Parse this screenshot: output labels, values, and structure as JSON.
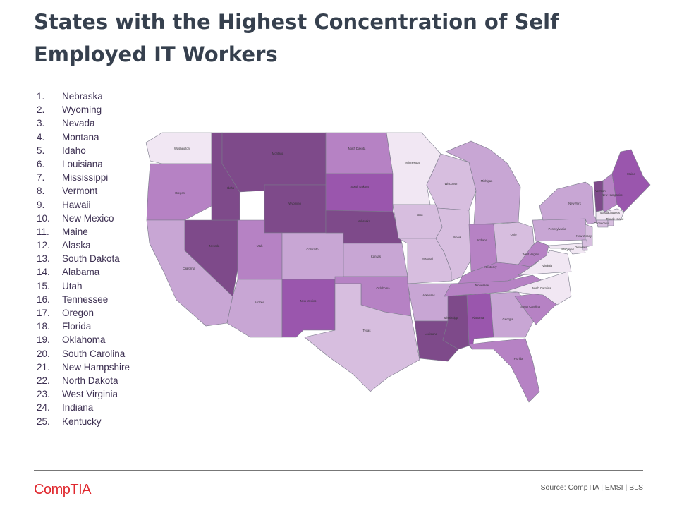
{
  "title": "States with the Highest Concentration of Self Employed IT Workers",
  "ranking": [
    {
      "rank": "1.",
      "state": "Nebraska"
    },
    {
      "rank": "2.",
      "state": "Wyoming"
    },
    {
      "rank": "3.",
      "state": "Nevada"
    },
    {
      "rank": "4.",
      "state": "Montana"
    },
    {
      "rank": "5.",
      "state": "Idaho"
    },
    {
      "rank": "6.",
      "state": "Louisiana"
    },
    {
      "rank": "7.",
      "state": "Mississippi"
    },
    {
      "rank": "8.",
      "state": "Vermont"
    },
    {
      "rank": "9.",
      "state": "Hawaii"
    },
    {
      "rank": "10.",
      "state": "New Mexico"
    },
    {
      "rank": "11.",
      "state": "Maine"
    },
    {
      "rank": "12.",
      "state": "Alaska"
    },
    {
      "rank": "13.",
      "state": "South Dakota"
    },
    {
      "rank": "14.",
      "state": "Alabama"
    },
    {
      "rank": "15.",
      "state": "Utah"
    },
    {
      "rank": "16.",
      "state": "Tennessee"
    },
    {
      "rank": "17.",
      "state": "Oregon"
    },
    {
      "rank": "18.",
      "state": "Florida"
    },
    {
      "rank": "19.",
      "state": "Oklahoma"
    },
    {
      "rank": "20.",
      "state": "South Carolina"
    },
    {
      "rank": "21.",
      "state": "New Hampshire"
    },
    {
      "rank": "22.",
      "state": "North Dakota"
    },
    {
      "rank": "23.",
      "state": "West Virginia"
    },
    {
      "rank": "24.",
      "state": "Indiana"
    },
    {
      "rank": "25.",
      "state": "Kentucky"
    }
  ],
  "map_colors": {
    "darkest": "#7e4a8a",
    "dark": "#9a56ad",
    "medium": "#b682c4",
    "light": "#c8a6d4",
    "lighter": "#d7bedf",
    "lightest": "#f1e7f3"
  },
  "map_states": [
    {
      "name": "Washington",
      "tier": "lightest"
    },
    {
      "name": "Oregon",
      "tier": "medium"
    },
    {
      "name": "California",
      "tier": "light"
    },
    {
      "name": "Nevada",
      "tier": "darkest"
    },
    {
      "name": "Idaho",
      "tier": "darkest"
    },
    {
      "name": "Montana",
      "tier": "darkest"
    },
    {
      "name": "Wyoming",
      "tier": "darkest"
    },
    {
      "name": "Utah",
      "tier": "medium"
    },
    {
      "name": "Arizona",
      "tier": "light"
    },
    {
      "name": "Colorado",
      "tier": "light"
    },
    {
      "name": "New Mexico",
      "tier": "dark"
    },
    {
      "name": "North Dakota",
      "tier": "medium"
    },
    {
      "name": "South Dakota",
      "tier": "dark"
    },
    {
      "name": "Nebraska",
      "tier": "darkest"
    },
    {
      "name": "Kansas",
      "tier": "light"
    },
    {
      "name": "Oklahoma",
      "tier": "medium"
    },
    {
      "name": "Texas",
      "tier": "lighter"
    },
    {
      "name": "Minnesota",
      "tier": "lightest"
    },
    {
      "name": "Iowa",
      "tier": "lighter"
    },
    {
      "name": "Missouri",
      "tier": "lighter"
    },
    {
      "name": "Arkansas",
      "tier": "light"
    },
    {
      "name": "Louisiana",
      "tier": "darkest"
    },
    {
      "name": "Wisconsin",
      "tier": "lighter"
    },
    {
      "name": "Illinois",
      "tier": "lighter"
    },
    {
      "name": "Michigan",
      "tier": "light"
    },
    {
      "name": "Indiana",
      "tier": "medium"
    },
    {
      "name": "Ohio",
      "tier": "lighter"
    },
    {
      "name": "Kentucky",
      "tier": "medium"
    },
    {
      "name": "Tennessee",
      "tier": "medium"
    },
    {
      "name": "Mississippi",
      "tier": "darkest"
    },
    {
      "name": "Alabama",
      "tier": "dark"
    },
    {
      "name": "Georgia",
      "tier": "light"
    },
    {
      "name": "Florida",
      "tier": "medium"
    },
    {
      "name": "South Carolina",
      "tier": "medium"
    },
    {
      "name": "North Carolina",
      "tier": "lightest"
    },
    {
      "name": "Virginia",
      "tier": "lightest"
    },
    {
      "name": "West Virginia",
      "tier": "medium"
    },
    {
      "name": "Pennsylvania",
      "tier": "light"
    },
    {
      "name": "New York",
      "tier": "light"
    },
    {
      "name": "New Jersey",
      "tier": "lighter"
    },
    {
      "name": "Maryland",
      "tier": "lightest"
    },
    {
      "name": "Delaware",
      "tier": "lighter"
    },
    {
      "name": "Vermont",
      "tier": "darkest"
    },
    {
      "name": "New Hampshire",
      "tier": "medium"
    },
    {
      "name": "Maine",
      "tier": "dark"
    },
    {
      "name": "Massachusetts",
      "tier": "lightest"
    },
    {
      "name": "Connecticut",
      "tier": "lighter"
    },
    {
      "name": "Rhode Island",
      "tier": "lighter"
    }
  ],
  "footer": {
    "logo": "CompTIA",
    "source": "Source: CompTIA | EMSI | BLS"
  }
}
